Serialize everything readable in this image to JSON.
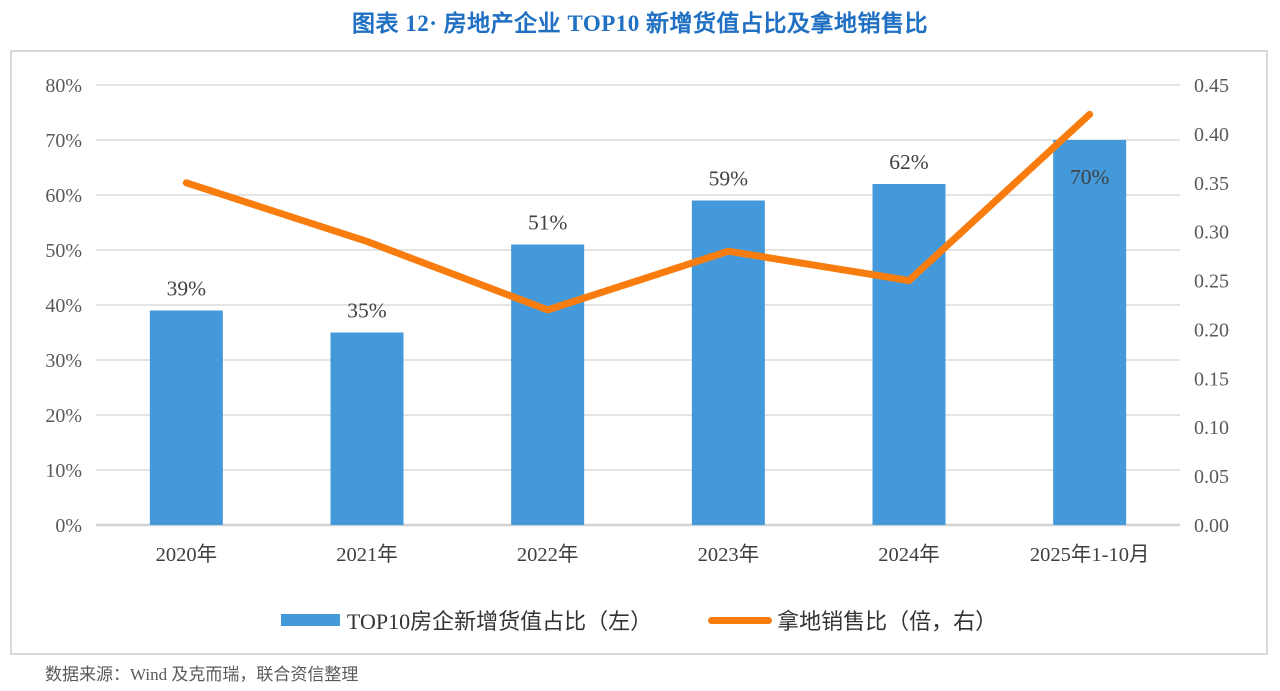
{
  "page": {
    "title": "图表 12· 房地产企业 TOP10 新增货值占比及拿地销售比",
    "source_note": "数据来源：Wind 及克而瑞，联合资信整理"
  },
  "colors": {
    "title": "#1f6fc2",
    "bar": "#4499db",
    "line": "#f87d0e",
    "gridline": "#dcdcdc",
    "axis_line": "#d2d2d2",
    "axis_text": "#595959",
    "category_text": "#3f3f3f",
    "data_label": "#404040",
    "legend_text": "#333333",
    "frame_border": "#d9d9d9"
  },
  "chart_data": {
    "type": "bar+line combo",
    "title": "图表 12· 房地产企业 TOP10 新增货值占比及拿地销售比",
    "categories": [
      "2020年",
      "2021年",
      "2022年",
      "2023年",
      "2024年",
      "2025年1-10月"
    ],
    "series": [
      {
        "name": "TOP10房企新增货值占比（左）",
        "type": "bar",
        "axis": "left",
        "values": [
          0.39,
          0.35,
          0.51,
          0.59,
          0.62,
          0.7
        ],
        "labels": [
          "39%",
          "35%",
          "51%",
          "59%",
          "62%",
          "70%"
        ],
        "label_position": [
          "above",
          "above",
          "above",
          "above",
          "above",
          "inside"
        ]
      },
      {
        "name": "拿地销售比（倍，右）",
        "type": "line",
        "axis": "right",
        "values": [
          0.35,
          0.29,
          0.22,
          0.28,
          0.25,
          0.42
        ]
      }
    ],
    "left_axis": {
      "min": 0,
      "max": 0.8,
      "step": 0.1,
      "tick_labels": [
        "0%",
        "10%",
        "20%",
        "30%",
        "40%",
        "50%",
        "60%",
        "70%",
        "80%"
      ]
    },
    "right_axis": {
      "min": 0,
      "max": 0.45,
      "step": 0.05,
      "tick_labels": [
        "0.00",
        "0.05",
        "0.10",
        "0.15",
        "0.20",
        "0.25",
        "0.30",
        "0.35",
        "0.40",
        "0.45"
      ]
    },
    "grid": true,
    "legend_position": "bottom"
  }
}
